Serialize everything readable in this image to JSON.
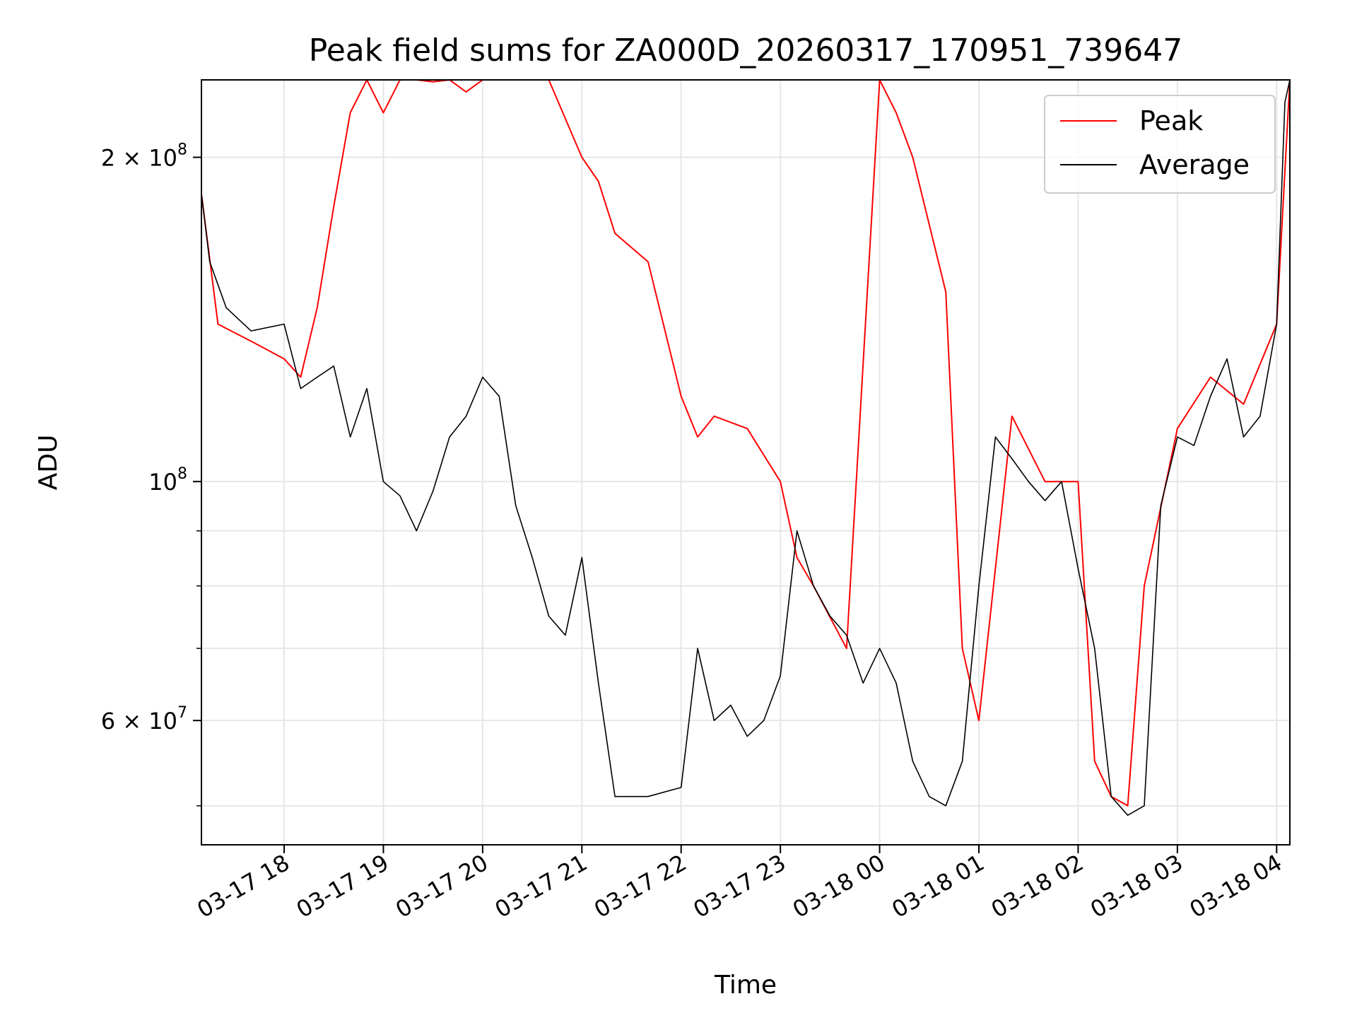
{
  "chart_data": {
    "type": "line",
    "title": "Peak field sums for ZA000D_20260317_170951_739647",
    "xlabel": "Time",
    "ylabel": "ADU",
    "y_scale": "log",
    "x_range": [
      "2026-03-17T17:10",
      "2026-03-18T04:08"
    ],
    "ylim": [
      46000000,
      236000000
    ],
    "grid": true,
    "legend_position": "upper-right",
    "x_ticks": [
      {
        "value": "2026-03-17T18:00",
        "label": "03-17 18"
      },
      {
        "value": "2026-03-17T19:00",
        "label": "03-17 19"
      },
      {
        "value": "2026-03-17T20:00",
        "label": "03-17 20"
      },
      {
        "value": "2026-03-17T21:00",
        "label": "03-17 21"
      },
      {
        "value": "2026-03-17T22:00",
        "label": "03-17 22"
      },
      {
        "value": "2026-03-17T23:00",
        "label": "03-17 23"
      },
      {
        "value": "2026-03-18T00:00",
        "label": "03-18 00"
      },
      {
        "value": "2026-03-18T01:00",
        "label": "03-18 01"
      },
      {
        "value": "2026-03-18T02:00",
        "label": "03-18 02"
      },
      {
        "value": "2026-03-18T03:00",
        "label": "03-18 03"
      },
      {
        "value": "2026-03-18T04:00",
        "label": "03-18 04"
      }
    ],
    "y_ticks_major": [
      {
        "value": 60000000,
        "base": "6 × 10",
        "exp": "7"
      },
      {
        "value": 100000000,
        "base": "10",
        "exp": "8"
      },
      {
        "value": 200000000,
        "base": "2 × 10",
        "exp": "8"
      }
    ],
    "y_ticks_minor": [
      50000000,
      70000000,
      80000000,
      90000000
    ],
    "series": [
      {
        "name": "Peak",
        "color": "#ff0000",
        "x": [
          "2026-03-17T17:10",
          "2026-03-17T17:20",
          "2026-03-17T17:40",
          "2026-03-17T18:00",
          "2026-03-17T18:10",
          "2026-03-17T18:20",
          "2026-03-17T18:30",
          "2026-03-17T18:40",
          "2026-03-17T18:50",
          "2026-03-17T19:00",
          "2026-03-17T19:10",
          "2026-03-17T19:20",
          "2026-03-17T19:30",
          "2026-03-17T19:40",
          "2026-03-17T19:50",
          "2026-03-17T20:00",
          "2026-03-17T20:20",
          "2026-03-17T20:40",
          "2026-03-17T21:00",
          "2026-03-17T21:10",
          "2026-03-17T21:20",
          "2026-03-17T21:40",
          "2026-03-17T22:00",
          "2026-03-17T22:10",
          "2026-03-17T22:20",
          "2026-03-17T22:40",
          "2026-03-17T23:00",
          "2026-03-17T23:10",
          "2026-03-17T23:20",
          "2026-03-17T23:40",
          "2026-03-18T00:00",
          "2026-03-18T00:10",
          "2026-03-18T00:20",
          "2026-03-18T00:40",
          "2026-03-18T00:50",
          "2026-03-18T01:00",
          "2026-03-18T01:20",
          "2026-03-18T01:40",
          "2026-03-18T02:00",
          "2026-03-18T02:10",
          "2026-03-18T02:20",
          "2026-03-18T02:30",
          "2026-03-18T02:40",
          "2026-03-18T03:00",
          "2026-03-18T03:20",
          "2026-03-18T03:40",
          "2026-03-18T04:00",
          "2026-03-18T04:08"
        ],
        "values": [
          185000000,
          140000000,
          135000000,
          130000000,
          125000000,
          145000000,
          180000000,
          220000000,
          236000000,
          220000000,
          236000000,
          236000000,
          235000000,
          236000000,
          230000000,
          236000000,
          236000000,
          236000000,
          200000000,
          190000000,
          170000000,
          160000000,
          120000000,
          110000000,
          115000000,
          112000000,
          100000000,
          85000000,
          80000000,
          70000000,
          236000000,
          220000000,
          200000000,
          150000000,
          70000000,
          60000000,
          115000000,
          100000000,
          100000000,
          55000000,
          51000000,
          50000000,
          80000000,
          112000000,
          125000000,
          118000000,
          140000000,
          236000000
        ]
      },
      {
        "name": "Average",
        "color": "#000000",
        "x": [
          "2026-03-17T17:10",
          "2026-03-17T17:15",
          "2026-03-17T17:25",
          "2026-03-17T17:40",
          "2026-03-17T18:00",
          "2026-03-17T18:10",
          "2026-03-17T18:20",
          "2026-03-17T18:30",
          "2026-03-17T18:40",
          "2026-03-17T18:50",
          "2026-03-17T19:00",
          "2026-03-17T19:10",
          "2026-03-17T19:20",
          "2026-03-17T19:30",
          "2026-03-17T19:40",
          "2026-03-17T19:50",
          "2026-03-17T20:00",
          "2026-03-17T20:10",
          "2026-03-17T20:20",
          "2026-03-17T20:30",
          "2026-03-17T20:40",
          "2026-03-17T20:50",
          "2026-03-17T21:00",
          "2026-03-17T21:10",
          "2026-03-17T21:20",
          "2026-03-17T21:40",
          "2026-03-17T22:00",
          "2026-03-17T22:10",
          "2026-03-17T22:20",
          "2026-03-17T22:30",
          "2026-03-17T22:40",
          "2026-03-17T22:50",
          "2026-03-17T23:00",
          "2026-03-17T23:10",
          "2026-03-17T23:20",
          "2026-03-17T23:30",
          "2026-03-17T23:40",
          "2026-03-17T23:50",
          "2026-03-18T00:00",
          "2026-03-18T00:10",
          "2026-03-18T00:20",
          "2026-03-18T00:30",
          "2026-03-18T00:40",
          "2026-03-18T00:50",
          "2026-03-18T01:00",
          "2026-03-18T01:10",
          "2026-03-18T01:20",
          "2026-03-18T01:30",
          "2026-03-18T01:40",
          "2026-03-18T01:50",
          "2026-03-18T02:00",
          "2026-03-18T02:10",
          "2026-03-18T02:20",
          "2026-03-18T02:30",
          "2026-03-18T02:40",
          "2026-03-18T02:50",
          "2026-03-18T03:00",
          "2026-03-18T03:10",
          "2026-03-18T03:20",
          "2026-03-18T03:30",
          "2026-03-18T03:40",
          "2026-03-18T03:50",
          "2026-03-18T04:00",
          "2026-03-18T04:05",
          "2026-03-18T04:08"
        ],
        "values": [
          185000000,
          160000000,
          145000000,
          138000000,
          140000000,
          122000000,
          125000000,
          128000000,
          110000000,
          122000000,
          100000000,
          97000000,
          90000000,
          98000000,
          110000000,
          115000000,
          125000000,
          120000000,
          95000000,
          85000000,
          75000000,
          72000000,
          85000000,
          65000000,
          51000000,
          51000000,
          52000000,
          70000000,
          60000000,
          62000000,
          58000000,
          60000000,
          66000000,
          90000000,
          80000000,
          75000000,
          72000000,
          65000000,
          70000000,
          65000000,
          55000000,
          51000000,
          50000000,
          55000000,
          80000000,
          110000000,
          105000000,
          100000000,
          96000000,
          100000000,
          83000000,
          70000000,
          51000000,
          49000000,
          50000000,
          95000000,
          110000000,
          108000000,
          120000000,
          130000000,
          110000000,
          115000000,
          140000000,
          225000000,
          236000000
        ]
      }
    ]
  }
}
